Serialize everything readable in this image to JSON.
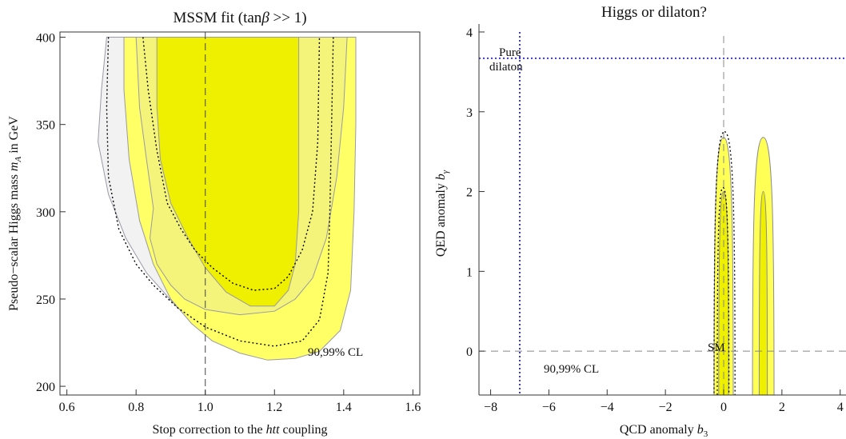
{
  "chart_data": [
    {
      "type": "contour",
      "title": "MSSM fit (tanβ >> 1)",
      "xlabel": "Stop correction to the htt coupling",
      "ylabel": "Pseudo-scalar Higgs mass m_A in GeV",
      "xlim": [
        0.58,
        1.62
      ],
      "ylim": [
        195,
        403
      ],
      "xticks": [
        0.6,
        0.8,
        1.0,
        1.2,
        1.4,
        1.6
      ],
      "yticks": [
        200,
        250,
        300,
        350,
        400
      ],
      "annotation": "90,99% CL",
      "reference_lines": [
        {
          "orientation": "vertical",
          "x": 1.0,
          "style": "dashed"
        }
      ],
      "regions": [
        {
          "level": "99% CL (light grey)",
          "color": "#f2f2f2",
          "points": [
            [
              0.715,
              400
            ],
            [
              0.7,
              370
            ],
            [
              0.69,
              340
            ],
            [
              0.72,
              310
            ],
            [
              0.77,
              285
            ],
            [
              0.83,
              265
            ],
            [
              0.92,
              245
            ],
            [
              1.0,
              232
            ],
            [
              1.1,
              225
            ],
            [
              1.2,
              223
            ],
            [
              1.28,
              228
            ],
            [
              1.33,
              240
            ],
            [
              1.36,
              270
            ],
            [
              1.37,
              300
            ],
            [
              1.37,
              350
            ],
            [
              1.36,
              400
            ]
          ]
        },
        {
          "level": "99% CL (yellow)",
          "color": "#ffff66",
          "points": [
            [
              0.765,
              400
            ],
            [
              0.765,
              370
            ],
            [
              0.78,
              330
            ],
            [
              0.81,
              295
            ],
            [
              0.85,
              270
            ],
            [
              0.9,
              250
            ],
            [
              0.96,
              236
            ],
            [
              1.02,
              226
            ],
            [
              1.1,
              219
            ],
            [
              1.18,
              215
            ],
            [
              1.26,
              216
            ],
            [
              1.33,
              220
            ],
            [
              1.39,
              232
            ],
            [
              1.42,
              255
            ],
            [
              1.43,
              300
            ],
            [
              1.435,
              350
            ],
            [
              1.435,
              400
            ]
          ]
        },
        {
          "level": "99% CL (light yellow)",
          "color": "#f4f47a",
          "points": [
            [
              0.8,
              400
            ],
            [
              0.81,
              360
            ],
            [
              0.83,
              330
            ],
            [
              0.85,
              302
            ],
            [
              0.84,
              285
            ],
            [
              0.86,
              270
            ],
            [
              0.9,
              258
            ],
            [
              0.94,
              250
            ],
            [
              1.0,
              244
            ],
            [
              1.1,
              241
            ],
            [
              1.2,
              243
            ],
            [
              1.26,
              250
            ],
            [
              1.31,
              262
            ],
            [
              1.35,
              285
            ],
            [
              1.38,
              320
            ],
            [
              1.4,
              360
            ],
            [
              1.41,
              400
            ]
          ]
        },
        {
          "level": "90% CL (yellow)",
          "color": "#efef00",
          "points": [
            [
              0.86,
              400
            ],
            [
              0.86,
              360
            ],
            [
              0.87,
              330
            ],
            [
              0.9,
              305
            ],
            [
              0.95,
              285
            ],
            [
              1.0,
              268
            ],
            [
              1.06,
              254
            ],
            [
              1.13,
              246
            ],
            [
              1.2,
              246
            ],
            [
              1.24,
              255
            ],
            [
              1.26,
              270
            ],
            [
              1.27,
              300
            ],
            [
              1.27,
              350
            ],
            [
              1.27,
              400
            ]
          ]
        }
      ],
      "dotted_curves": [
        [
          [
            0.72,
            400
          ],
          [
            0.715,
            360
          ],
          [
            0.72,
            320
          ],
          [
            0.75,
            290
          ],
          [
            0.8,
            270
          ],
          [
            0.85,
            258
          ],
          [
            0.92,
            245
          ],
          [
            1.0,
            234
          ],
          [
            1.1,
            226
          ],
          [
            1.2,
            223
          ],
          [
            1.28,
            226
          ],
          [
            1.33,
            238
          ],
          [
            1.355,
            265
          ],
          [
            1.36,
            300
          ],
          [
            1.365,
            350
          ],
          [
            1.37,
            400
          ]
        ],
        [
          [
            0.82,
            400
          ],
          [
            0.835,
            370
          ],
          [
            0.86,
            335
          ],
          [
            0.89,
            305
          ],
          [
            0.93,
            290
          ],
          [
            0.97,
            278
          ],
          [
            1.02,
            268
          ],
          [
            1.08,
            259
          ],
          [
            1.14,
            255
          ],
          [
            1.2,
            256
          ],
          [
            1.24,
            263
          ],
          [
            1.28,
            278
          ],
          [
            1.31,
            300
          ],
          [
            1.325,
            340
          ],
          [
            1.33,
            400
          ]
        ]
      ]
    },
    {
      "type": "contour",
      "title": "Higgs or dilaton?",
      "xlabel": "QCD anomaly b_3",
      "ylabel": "QED anomaly b_γ",
      "xlim": [
        -8.4,
        4.2
      ],
      "ylim": [
        -0.55,
        4.1
      ],
      "xticks": [
        -8,
        -6,
        -4,
        -2,
        0,
        2,
        4
      ],
      "yticks": [
        0,
        1,
        2,
        3,
        4
      ],
      "annotations": [
        "Pure dilaton",
        "SM",
        "90,99% CL"
      ],
      "reference_lines": [
        {
          "orientation": "vertical",
          "x": 0,
          "style": "dashed",
          "color": "#888888"
        },
        {
          "orientation": "horizontal",
          "y": 0,
          "style": "dashed",
          "color": "#888888"
        },
        {
          "orientation": "vertical",
          "x": -7,
          "style": "dotted",
          "color": "#2222ee"
        },
        {
          "orientation": "horizontal",
          "y": 3.67,
          "style": "dotted",
          "color": "#2222ee"
        }
      ],
      "regions": [
        {
          "level": "99% CL",
          "color": "#ffff55",
          "center_x": 0.0,
          "top": 2.68,
          "half_width": 0.33
        },
        {
          "level": "90% CL",
          "color": "#efef00",
          "center_x": 0.0,
          "top": 2.0,
          "half_width": 0.17
        },
        {
          "level": "99% CL",
          "color": "#ffff55",
          "center_x": 1.36,
          "top": 2.68,
          "half_width": 0.37
        },
        {
          "level": "90% CL",
          "color": "#efef00",
          "center_x": 1.36,
          "top": 2.0,
          "half_width": 0.14
        }
      ]
    }
  ],
  "labels": {
    "left_title": "MSSM fit (tan",
    "left_title_beta": "β",
    "left_title_rest": " >> 1)",
    "left_ylabel_pre": "Pseudo−scalar Higgs mass ",
    "left_ylabel_var": "m",
    "left_ylabel_sub": "A",
    "left_ylabel_post": " in GeV",
    "left_xlabel_pre": "Stop correction to the ",
    "left_xlabel_var": "htt",
    "left_xlabel_post": " coupling",
    "left_annotation": "90,99% CL",
    "right_title": "Higgs or dilaton?",
    "right_ylabel_pre": "QED anomaly ",
    "right_ylabel_var": "b",
    "right_ylabel_sub": "γ",
    "right_xlabel_pre": "QCD anomaly ",
    "right_xlabel_var": "b",
    "right_xlabel_sub": "3",
    "dilaton_line1": "Pure",
    "dilaton_line2": "dilaton",
    "sm": "SM",
    "right_annotation": "90,99% CL"
  }
}
